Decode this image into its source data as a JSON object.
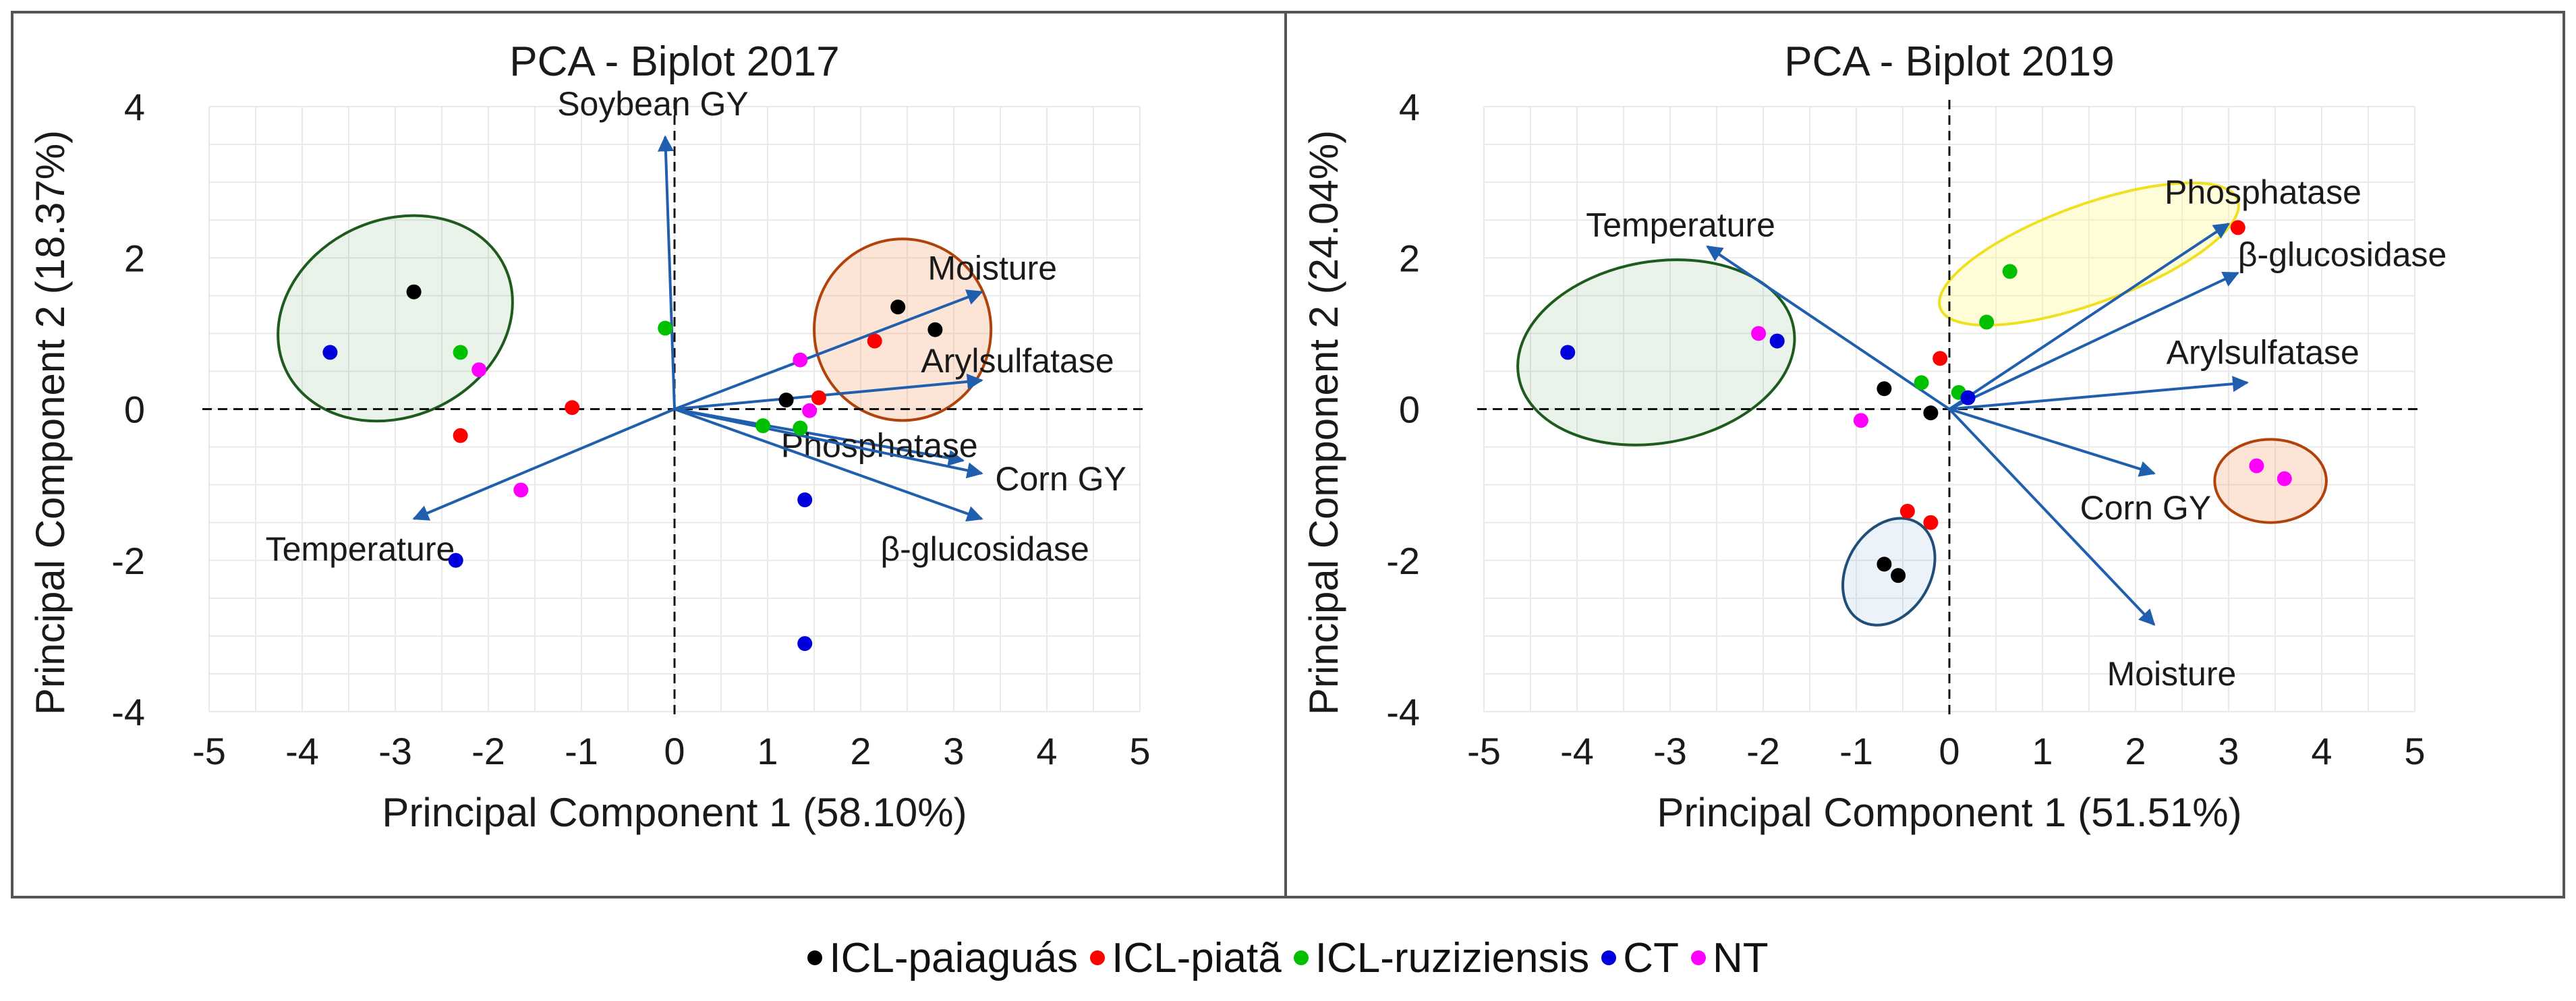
{
  "chart_data": [
    {
      "type": "scatter",
      "title": "PCA - Biplot 2017",
      "xlabel": "Principal Component 1 (58.10%)",
      "ylabel": "Principal Component 2 (18.37%)",
      "xlim": [
        -5,
        5
      ],
      "ylim": [
        -4,
        4
      ],
      "xticks": [
        -5,
        -4,
        -3,
        -2,
        -1,
        0,
        1,
        2,
        3,
        4,
        5
      ],
      "yticks": [
        -4,
        -2,
        0,
        2,
        4
      ],
      "grid": true,
      "series": [
        {
          "name": "ICL-paiaguás",
          "color": "#000000",
          "points": [
            [
              -2.8,
              1.55
            ],
            [
              1.2,
              0.12
            ],
            [
              2.4,
              1.35
            ],
            [
              2.8,
              1.05
            ]
          ]
        },
        {
          "name": "ICL-piatã",
          "color": "#ff0000",
          "points": [
            [
              -2.3,
              -0.35
            ],
            [
              -1.1,
              0.02
            ],
            [
              1.55,
              0.15
            ],
            [
              2.15,
              0.9
            ]
          ]
        },
        {
          "name": "ICL-ruziziensis",
          "color": "#00c000",
          "points": [
            [
              -2.3,
              0.75
            ],
            [
              -0.1,
              1.07
            ],
            [
              0.95,
              -0.22
            ],
            [
              1.35,
              -0.25
            ]
          ]
        },
        {
          "name": "CT",
          "color": "#0000dd",
          "points": [
            [
              -3.7,
              0.75
            ],
            [
              -2.35,
              -2.0
            ],
            [
              1.4,
              -1.2
            ],
            [
              1.4,
              -3.1
            ]
          ]
        },
        {
          "name": "NT",
          "color": "#ff00ff",
          "points": [
            [
              -2.1,
              0.52
            ],
            [
              -1.65,
              -1.07
            ],
            [
              1.35,
              0.65
            ],
            [
              1.45,
              -0.02
            ]
          ]
        }
      ],
      "vectors": [
        {
          "label": "Soybean GY",
          "x": -0.1,
          "y": 3.6
        },
        {
          "label": "Moisture",
          "x": 3.3,
          "y": 1.55
        },
        {
          "label": "Arylsulfatase",
          "x": 3.3,
          "y": 0.38
        },
        {
          "label": "Phosphatase",
          "x": 3.1,
          "y": -0.68
        },
        {
          "label": "Corn GY",
          "x": 3.3,
          "y": -0.85
        },
        {
          "label": "β-glucosidase",
          "x": 3.3,
          "y": -1.45
        },
        {
          "label": "Temperature",
          "x": -2.8,
          "y": -1.45
        }
      ],
      "ellipses": [
        {
          "color": "green",
          "cx": -3.0,
          "cy": 1.2,
          "rx": 1.3,
          "ry": 1.3,
          "angle": -25
        },
        {
          "color": "orange",
          "cx": 2.45,
          "cy": 1.05,
          "rx": 0.95,
          "ry": 1.2,
          "angle": 0
        }
      ]
    },
    {
      "type": "scatter",
      "title": "PCA - Biplot 2019",
      "xlabel": "Principal Component 1 (51.51%)",
      "ylabel": "Principal Component 2 (24.04%)",
      "xlim": [
        -5,
        5
      ],
      "ylim": [
        -4,
        4
      ],
      "xticks": [
        -5,
        -4,
        -3,
        -2,
        -1,
        0,
        1,
        2,
        3,
        4,
        5
      ],
      "yticks": [
        -4,
        -2,
        0,
        2,
        4
      ],
      "grid": true,
      "series": [
        {
          "name": "ICL-paiaguás",
          "color": "#000000",
          "points": [
            [
              -0.7,
              0.27
            ],
            [
              -0.2,
              -0.05
            ],
            [
              -0.7,
              -2.05
            ],
            [
              -0.55,
              -2.2
            ]
          ]
        },
        {
          "name": "ICL-piatã",
          "color": "#ff0000",
          "points": [
            [
              -0.1,
              0.67
            ],
            [
              3.1,
              2.4
            ],
            [
              -0.45,
              -1.35
            ],
            [
              -0.2,
              -1.5
            ]
          ]
        },
        {
          "name": "ICL-ruziziensis",
          "color": "#00c000",
          "points": [
            [
              -0.3,
              0.35
            ],
            [
              0.4,
              1.15
            ],
            [
              0.65,
              1.82
            ],
            [
              0.1,
              0.22
            ]
          ]
        },
        {
          "name": "CT",
          "color": "#0000dd",
          "points": [
            [
              -4.1,
              0.75
            ],
            [
              -1.85,
              0.9
            ],
            [
              0.2,
              0.15
            ]
          ]
        },
        {
          "name": "NT",
          "color": "#ff00ff",
          "points": [
            [
              -2.05,
              1.0
            ],
            [
              -0.95,
              -0.15
            ],
            [
              3.3,
              -0.75
            ],
            [
              3.6,
              -0.92
            ]
          ]
        }
      ],
      "vectors": [
        {
          "label": "Temperature",
          "x": -2.6,
          "y": 2.15
        },
        {
          "label": "Phosphatase",
          "x": 3.0,
          "y": 2.45
        },
        {
          "label": "β-glucosidase",
          "x": 3.1,
          "y": 1.8
        },
        {
          "label": "Arylsulfatase",
          "x": 3.2,
          "y": 0.35
        },
        {
          "label": "Corn GY",
          "x": 2.2,
          "y": -0.85
        },
        {
          "label": "Moisture",
          "x": 2.2,
          "y": -2.85
        }
      ],
      "ellipses": [
        {
          "color": "green",
          "cx": -3.15,
          "cy": 0.75,
          "rx": 1.5,
          "ry": 1.2,
          "angle": -10
        },
        {
          "color": "yellow",
          "cx": 1.5,
          "cy": 2.05,
          "rx": 1.7,
          "ry": 0.65,
          "angle": -20
        },
        {
          "color": "orange",
          "cx": 3.45,
          "cy": -0.95,
          "rx": 0.6,
          "ry": 0.55,
          "angle": 0
        },
        {
          "color": "blue",
          "cx": -0.65,
          "cy": -2.15,
          "rx": 0.45,
          "ry": 0.75,
          "angle": 30
        }
      ]
    }
  ],
  "legend": [
    {
      "label": "ICL-paiaguás",
      "color": "#000000"
    },
    {
      "label": "ICL-piatã",
      "color": "#ff0000"
    },
    {
      "label": "ICL-ruziziensis",
      "color": "#00c000"
    },
    {
      "label": "CT",
      "color": "#0000dd"
    },
    {
      "label": "NT",
      "color": "#ff00ff"
    }
  ]
}
